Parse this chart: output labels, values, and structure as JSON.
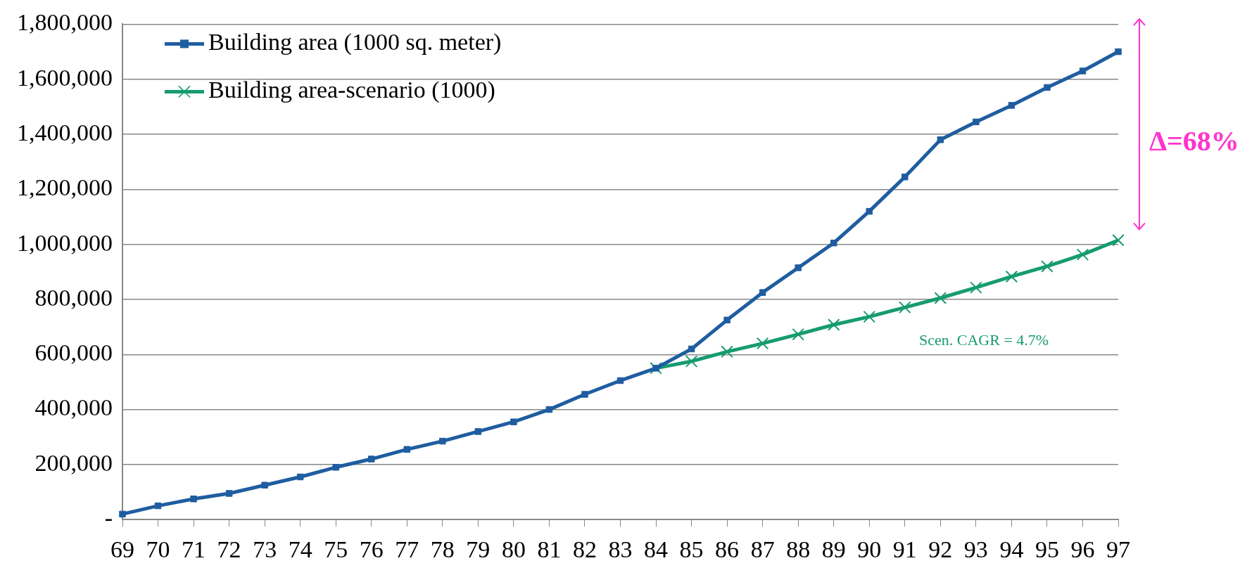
{
  "chart_data": {
    "type": "line",
    "categories": [
      "69",
      "70",
      "71",
      "72",
      "73",
      "74",
      "75",
      "76",
      "77",
      "78",
      "79",
      "80",
      "81",
      "82",
      "83",
      "84",
      "85",
      "86",
      "87",
      "88",
      "89",
      "90",
      "91",
      "92",
      "93",
      "94",
      "95",
      "96",
      "97"
    ],
    "series": [
      {
        "name": "Building area (1000 sq. meter)",
        "color": "#1f5da0",
        "marker": "square",
        "values": [
          20000,
          50000,
          75000,
          95000,
          125000,
          155000,
          190000,
          220000,
          255000,
          285000,
          320000,
          355000,
          400000,
          455000,
          505000,
          550000,
          620000,
          725000,
          825000,
          915000,
          1005000,
          1120000,
          1245000,
          1380000,
          1445000,
          1505000,
          1570000,
          1630000,
          1700000
        ]
      },
      {
        "name": "Building area-scenario (1000)",
        "color": "#169b70",
        "marker": "cross",
        "values": [
          null,
          null,
          null,
          null,
          null,
          null,
          null,
          null,
          null,
          null,
          null,
          null,
          null,
          null,
          null,
          550000,
          575000,
          610000,
          640000,
          673000,
          708000,
          737000,
          771000,
          805000,
          843000,
          883000,
          920000,
          963000,
          1015000
        ]
      }
    ],
    "ylim": [
      0,
      1800000
    ],
    "yticks": [
      {
        "value": 0,
        "label": "-"
      },
      {
        "value": 200000,
        "label": "200,000"
      },
      {
        "value": 400000,
        "label": "400,000"
      },
      {
        "value": 600000,
        "label": "600,000"
      },
      {
        "value": 800000,
        "label": "800,000"
      },
      {
        "value": 1000000,
        "label": "1,000,000"
      },
      {
        "value": 1200000,
        "label": "1,200,000"
      },
      {
        "value": 1400000,
        "label": "1,400,000"
      },
      {
        "value": 1600000,
        "label": "1,600,000"
      },
      {
        "value": 1800000,
        "label": "1,800,000"
      }
    ],
    "grid": "y",
    "legend": "top left",
    "line_style": "solid",
    "annotations": [
      "Scen. CAGR = 4.7%",
      "Δ=68%"
    ]
  }
}
